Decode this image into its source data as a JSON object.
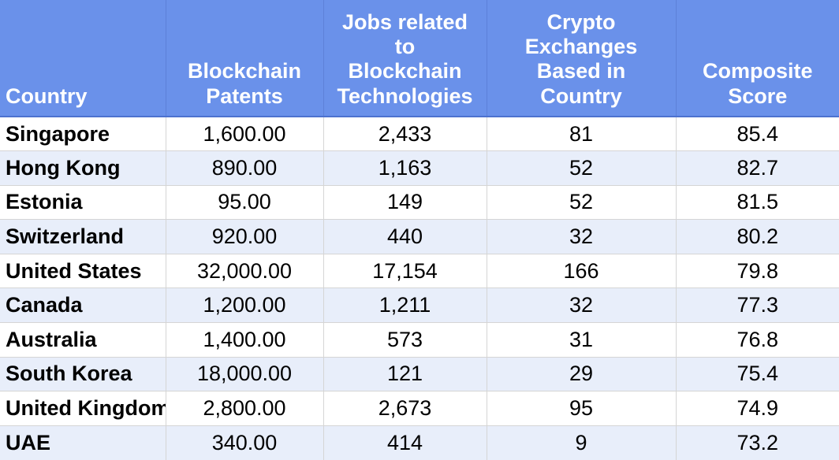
{
  "colors": {
    "header_bg": "#6a91ea",
    "header_text": "#ffffff",
    "header_gridline": "#5d80d8",
    "header_bottom_border": "#4d72cf",
    "row_bg": "#ffffff",
    "row_alt_bg": "#e8eefa",
    "gridline": "#d5d5d5",
    "text": "#000000"
  },
  "table": {
    "columns": [
      {
        "key": "country",
        "label": "Country"
      },
      {
        "key": "patents",
        "label": "Blockchain\nPatents"
      },
      {
        "key": "jobs",
        "label": "Jobs related\nto\nBlockchain\nTechnologies"
      },
      {
        "key": "exchanges",
        "label": "Crypto\nExchanges\nBased in\nCountry"
      },
      {
        "key": "score",
        "label": "Composite\nScore"
      }
    ],
    "rows": [
      {
        "country": "Singapore",
        "patents": "1,600.00",
        "jobs": "2,433",
        "exchanges": "81",
        "score": "85.4"
      },
      {
        "country": "Hong Kong",
        "patents": "890.00",
        "jobs": "1,163",
        "exchanges": "52",
        "score": "82.7"
      },
      {
        "country": "Estonia",
        "patents": "95.00",
        "jobs": "149",
        "exchanges": "52",
        "score": "81.5"
      },
      {
        "country": "Switzerland",
        "patents": "920.00",
        "jobs": "440",
        "exchanges": "32",
        "score": "80.2"
      },
      {
        "country": "United States",
        "patents": "32,000.00",
        "jobs": "17,154",
        "exchanges": "166",
        "score": "79.8"
      },
      {
        "country": "Canada",
        "patents": "1,200.00",
        "jobs": "1,211",
        "exchanges": "32",
        "score": "77.3"
      },
      {
        "country": "Australia",
        "patents": "1,400.00",
        "jobs": "573",
        "exchanges": "31",
        "score": "76.8"
      },
      {
        "country": "South Korea",
        "patents": "18,000.00",
        "jobs": "121",
        "exchanges": "29",
        "score": "75.4"
      },
      {
        "country": "United Kingdom",
        "patents": "2,800.00",
        "jobs": "2,673",
        "exchanges": "95",
        "score": "74.9"
      },
      {
        "country": "UAE",
        "patents": "340.00",
        "jobs": "414",
        "exchanges": "9",
        "score": "73.2"
      }
    ]
  }
}
